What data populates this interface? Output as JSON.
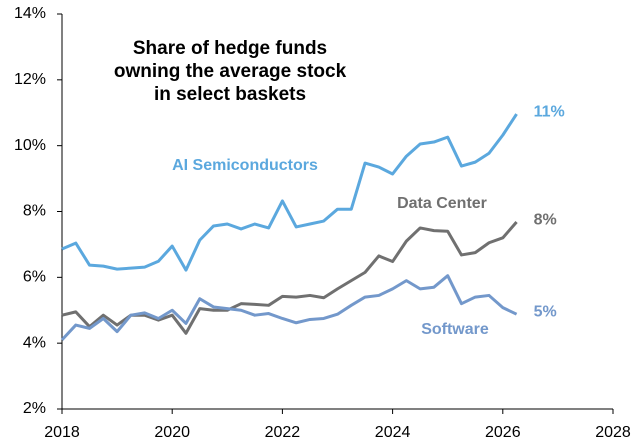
{
  "chart_data": {
    "type": "line",
    "title_lines": [
      "Share of hedge funds",
      "owning the average stock",
      "in select baskets"
    ],
    "x": [
      2018,
      2018.25,
      2018.5,
      2018.75,
      2019,
      2019.25,
      2019.5,
      2019.75,
      2020,
      2020.25,
      2020.5,
      2020.75,
      2021,
      2021.25,
      2021.5,
      2021.75,
      2022,
      2022.25,
      2022.5,
      2022.75,
      2023,
      2023.25,
      2023.5,
      2023.75,
      2024,
      2024.25,
      2024.5,
      2024.75,
      2025,
      2025.25,
      2025.5,
      2025.75,
      2026,
      2026.25
    ],
    "series": [
      {
        "name": "AI Semiconductors",
        "color": "#5ba8de",
        "end_label": "11%",
        "values": [
          6.86,
          7.04,
          6.37,
          6.34,
          6.25,
          6.28,
          6.31,
          6.49,
          6.95,
          6.22,
          7.13,
          7.56,
          7.62,
          7.47,
          7.62,
          7.5,
          8.32,
          7.53,
          7.62,
          7.71,
          8.07,
          8.07,
          9.47,
          9.35,
          9.14,
          9.68,
          10.05,
          10.11,
          10.26,
          9.38,
          9.5,
          9.77,
          10.32,
          10.96
        ]
      },
      {
        "name": "Data Center",
        "color": "#707070",
        "end_label": "8%",
        "values": [
          4.85,
          4.95,
          4.5,
          4.85,
          4.55,
          4.85,
          4.85,
          4.7,
          4.85,
          4.3,
          5.05,
          5.0,
          5.0,
          5.2,
          5.18,
          5.15,
          5.42,
          5.4,
          5.45,
          5.38,
          5.65,
          5.9,
          6.15,
          6.65,
          6.48,
          7.1,
          7.5,
          7.42,
          7.4,
          6.68,
          6.75,
          7.05,
          7.2,
          7.68
        ]
      },
      {
        "name": "Software",
        "color": "#7398cb",
        "end_label": "5%",
        "values": [
          4.1,
          4.55,
          4.45,
          4.75,
          4.35,
          4.85,
          4.92,
          4.75,
          5.0,
          4.6,
          5.35,
          5.1,
          5.05,
          5.0,
          4.85,
          4.9,
          4.75,
          4.62,
          4.72,
          4.75,
          4.88,
          5.15,
          5.4,
          5.45,
          5.65,
          5.9,
          5.65,
          5.7,
          6.05,
          5.2,
          5.4,
          5.45,
          5.08,
          4.88
        ]
      }
    ],
    "xlim": [
      2018,
      2028
    ],
    "xticks": [
      2018,
      2020,
      2022,
      2024,
      2026,
      2028
    ],
    "ylim": [
      2,
      14
    ],
    "yticks": [
      {
        "value": 2,
        "label": "2%"
      },
      {
        "value": 4,
        "label": "4%"
      },
      {
        "value": 6,
        "label": "6%"
      },
      {
        "value": 8,
        "label": "8%"
      },
      {
        "value": 10,
        "label": "10%"
      },
      {
        "value": 12,
        "label": "12%"
      },
      {
        "value": 14,
        "label": "14%"
      }
    ],
    "grid": false
  }
}
